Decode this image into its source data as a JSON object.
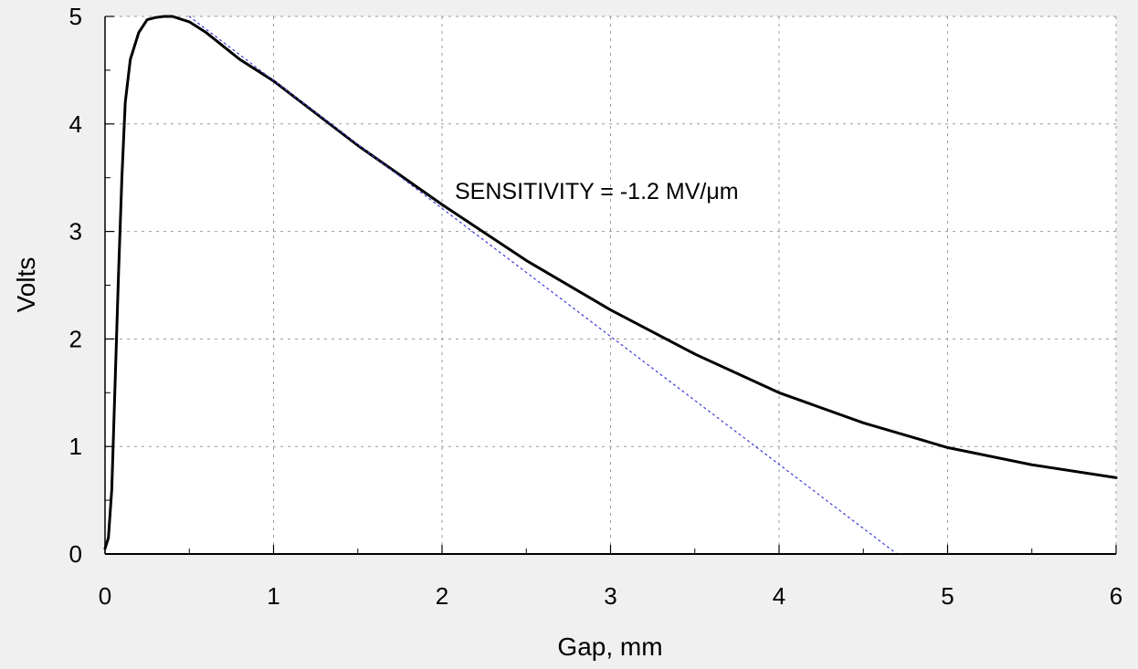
{
  "chart_data": {
    "type": "line",
    "title": "",
    "xlabel": "Gap, mm",
    "ylabel": "Volts",
    "xlim": [
      0,
      6
    ],
    "ylim": [
      0,
      5
    ],
    "xticks": [
      "0",
      "1",
      "2",
      "3",
      "4",
      "5",
      "6"
    ],
    "yticks": [
      "0",
      "1",
      "2",
      "3",
      "4",
      "5"
    ],
    "grid": true,
    "annotation": "SENSITIVITY = -1.2 MV/μm",
    "series": [
      {
        "style": "solid",
        "color": "#000000",
        "points": [
          [
            0.0,
            0.05
          ],
          [
            0.02,
            0.15
          ],
          [
            0.04,
            0.6
          ],
          [
            0.06,
            1.6
          ],
          [
            0.08,
            2.6
          ],
          [
            0.1,
            3.5
          ],
          [
            0.12,
            4.2
          ],
          [
            0.15,
            4.6
          ],
          [
            0.2,
            4.85
          ],
          [
            0.25,
            4.97
          ],
          [
            0.3,
            4.99
          ],
          [
            0.35,
            5.0
          ],
          [
            0.4,
            5.0
          ],
          [
            0.5,
            4.95
          ],
          [
            0.6,
            4.85
          ],
          [
            0.8,
            4.6
          ],
          [
            1.0,
            4.4
          ],
          [
            1.5,
            3.8
          ],
          [
            2.0,
            3.25
          ],
          [
            2.5,
            2.73
          ],
          [
            3.0,
            2.27
          ],
          [
            3.5,
            1.86
          ],
          [
            4.0,
            1.5
          ],
          [
            4.5,
            1.22
          ],
          [
            5.0,
            0.99
          ],
          [
            5.5,
            0.83
          ],
          [
            6.0,
            0.71
          ]
        ]
      },
      {
        "style": "dotted",
        "color": "#3a3ad8",
        "points": [
          [
            0.5,
            5.0
          ],
          [
            4.7,
            0.0
          ]
        ]
      }
    ]
  }
}
